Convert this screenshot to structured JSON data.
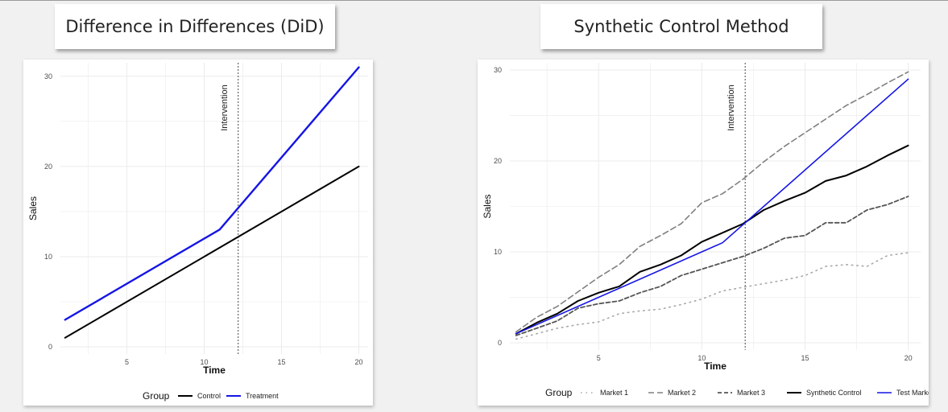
{
  "titles": {
    "did": "Difference in Differences (DiD)",
    "scm": "Synthetic Control Method"
  },
  "colors": {
    "control": "#000000",
    "treatment": "#1515e6",
    "gray": "#808080",
    "dark_gray": "#555555",
    "light_gray": "#a8a8a8"
  },
  "chart_data": [
    {
      "type": "line",
      "title": "Difference in Differences (DiD)",
      "xlabel": "Time",
      "ylabel": "Sales",
      "xlim": [
        0.7,
        20.6
      ],
      "ylim": [
        -0.8,
        31.5
      ],
      "x_ticks": [
        5,
        10,
        15,
        20
      ],
      "y_ticks": [
        0,
        10,
        20,
        30
      ],
      "grid": true,
      "legend_title": "Group",
      "legend_position": "bottom",
      "annotation": {
        "label": "Intervention",
        "x": 12.2
      },
      "series": [
        {
          "name": "Control",
          "color": "#000000",
          "dash": "",
          "width": 2,
          "x": [
            1,
            20
          ],
          "y": [
            1,
            20
          ]
        },
        {
          "name": "Treatment",
          "color": "#1515e6",
          "dash": "",
          "width": 2.4,
          "x": [
            1,
            11,
            20
          ],
          "y": [
            3,
            13,
            31
          ]
        }
      ]
    },
    {
      "type": "line",
      "title": "Synthetic Control Method",
      "xlabel": "Time",
      "ylabel": "Sales",
      "xlim": [
        0.7,
        20.6
      ],
      "ylim": [
        -0.8,
        30.8
      ],
      "x_ticks": [
        5,
        10,
        15,
        20
      ],
      "y_ticks": [
        0,
        10,
        20,
        30
      ],
      "grid": true,
      "legend_title": "Group",
      "legend_position": "bottom",
      "annotation": {
        "label": "Intervention",
        "x": 12.1
      },
      "series": [
        {
          "name": "Market 1",
          "color": "#a8a8a8",
          "dash": "1.5,5",
          "width": 1.6,
          "x": [
            1,
            2,
            3,
            4,
            5,
            6,
            7,
            8,
            9,
            10,
            11,
            12,
            13,
            14,
            15,
            16,
            17,
            18,
            19,
            20
          ],
          "y": [
            0.4,
            1.0,
            1.6,
            2.0,
            2.3,
            3.2,
            3.5,
            3.7,
            4.2,
            4.8,
            5.7,
            6.1,
            6.5,
            6.9,
            7.4,
            8.4,
            8.6,
            8.4,
            9.6,
            9.9
          ]
        },
        {
          "name": "Market 2",
          "color": "#808080",
          "dash": "7,4",
          "width": 1.6,
          "x": [
            1,
            2,
            3,
            4,
            5,
            6,
            7,
            8,
            9,
            10,
            11,
            12,
            13,
            14,
            15,
            16,
            17,
            18,
            19,
            20
          ],
          "y": [
            1.2,
            2.8,
            4.0,
            5.6,
            7.2,
            8.6,
            10.6,
            11.8,
            13.1,
            15.4,
            16.4,
            18.0,
            19.9,
            21.6,
            23.1,
            24.6,
            26.1,
            27.3,
            28.6,
            29.8
          ]
        },
        {
          "name": "Market 3",
          "color": "#555555",
          "dash": "5,3",
          "width": 1.8,
          "x": [
            1,
            2,
            3,
            4,
            5,
            6,
            7,
            8,
            9,
            10,
            11,
            12,
            13,
            14,
            15,
            16,
            17,
            18,
            19,
            20
          ],
          "y": [
            0.8,
            1.6,
            2.4,
            3.8,
            4.3,
            4.6,
            5.5,
            6.2,
            7.4,
            8.1,
            8.8,
            9.5,
            10.4,
            11.5,
            11.8,
            13.2,
            13.2,
            14.6,
            15.2,
            16.1
          ]
        },
        {
          "name": "Synthetic Control",
          "color": "#000000",
          "dash": "",
          "width": 2,
          "x": [
            1,
            2,
            3,
            4,
            5,
            6,
            7,
            8,
            9,
            10,
            11,
            12,
            13,
            14,
            15,
            16,
            17,
            18,
            19,
            20
          ],
          "y": [
            1.0,
            2.2,
            3.2,
            4.6,
            5.5,
            6.2,
            7.8,
            8.6,
            9.6,
            11.1,
            12.1,
            13.1,
            14.6,
            15.6,
            16.5,
            17.8,
            18.4,
            19.4,
            20.6,
            21.7
          ]
        },
        {
          "name": "Test Market",
          "color": "#1515e6",
          "dash": "",
          "width": 1.6,
          "x": [
            1,
            11,
            20
          ],
          "y": [
            1.0,
            11.0,
            29.0
          ]
        }
      ]
    }
  ]
}
